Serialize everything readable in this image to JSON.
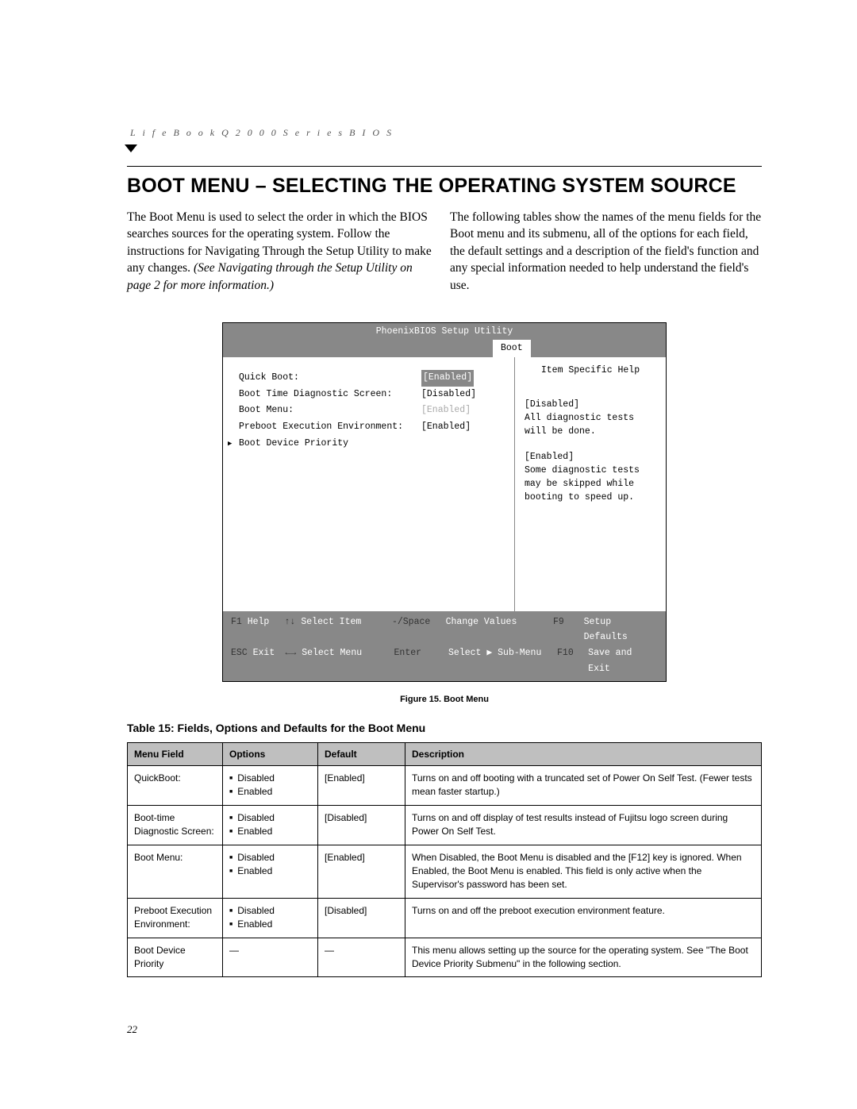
{
  "header": "L i f e B o o k   Q 2 0 0 0   S e r i e s   B I O S",
  "title": "BOOT MENU – SELECTING THE OPERATING SYSTEM SOURCE",
  "para_left_1": "The Boot Menu is used to select the order in which the BIOS searches sources for the operating system. Follow the instructions for Navigating Through the Setup Utility to make any changes. ",
  "para_left_em": "(See Navigating through the Setup Utility on page 2 for more information.)",
  "para_right": "The following tables show the names of the menu fields for the Boot menu and its submenu, all of the options for each field, the default settings and a description of the field's function and any special information needed to help understand the field's use.",
  "bios": {
    "title": "PhoenixBIOS Setup Utility",
    "tab": "Boot",
    "rows": [
      {
        "label": "Quick Boot:",
        "value": "[Enabled]",
        "selected": true
      },
      {
        "label": "Boot Time Diagnostic Screen:",
        "value": "[Disabled]"
      },
      {
        "label": "Boot Menu:",
        "value": "[Enabled]",
        "gray": true
      },
      {
        "label": "Preboot Execution Environment:",
        "value": "[Enabled]"
      },
      {
        "label": "Boot Device Priority",
        "submenu": true
      }
    ],
    "help_header": "Item Specific Help",
    "help_p1": "[Disabled]\nAll diagnostic tests will be done.",
    "help_p2": "[Enabled]\nSome diagnostic tests may be skipped while booting to speed up.",
    "footer": {
      "r1": {
        "k1": "F1",
        "l1": "Help",
        "k2": "↑↓",
        "l2": "Select Item",
        "k3": "-/Space",
        "l3": "Change Values",
        "k4": "F9",
        "l4": "Setup Defaults"
      },
      "r2": {
        "k1": "ESC",
        "l1": "Exit",
        "k2": "←→",
        "l2": "Select Menu",
        "k3": "Enter",
        "l3": "Select ▶ Sub-Menu",
        "k4": "F10",
        "l4": "Save and Exit"
      }
    }
  },
  "figure_caption": "Figure 15.  Boot Menu",
  "table_caption": "Table 15: Fields, Options and Defaults for the Boot Menu",
  "table": {
    "headers": [
      "Menu Field",
      "Options",
      "Default",
      "Description"
    ],
    "rows": [
      {
        "field": "QuickBoot:",
        "options": [
          "Disabled",
          "Enabled"
        ],
        "default": "[Enabled]",
        "desc": "Turns on and off booting with a truncated set of Power On Self Test. (Fewer tests mean faster startup.)"
      },
      {
        "field": "Boot-time Diagnostic Screen:",
        "options": [
          "Disabled",
          "Enabled"
        ],
        "default": "[Disabled]",
        "desc": "Turns on and off display of test results instead of Fujitsu logo screen during Power On Self Test."
      },
      {
        "field": "Boot Menu:",
        "options": [
          "Disabled",
          "Enabled"
        ],
        "default": "[Enabled]",
        "desc": "When Disabled, the Boot Menu is disabled and the [F12] key is ignored. When Enabled, the Boot Menu is enabled. This field is only active when the Supervisor's password has been set."
      },
      {
        "field": "Preboot Execution Environment:",
        "options": [
          "Disabled",
          "Enabled"
        ],
        "default": "[Disabled]",
        "desc": "Turns on and off the preboot execution environment feature."
      },
      {
        "field": "Boot Device Priority",
        "options": [
          "—"
        ],
        "default": "—",
        "desc": "This menu allows setting up the source for the operating system. See \"The Boot Device Priority Submenu\" in the following section."
      }
    ]
  },
  "page_number": "22"
}
